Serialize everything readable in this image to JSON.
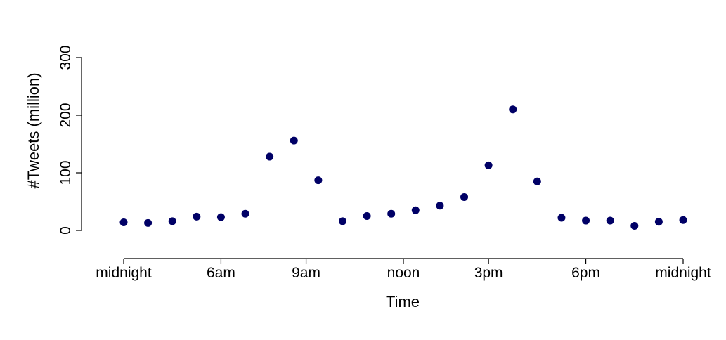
{
  "chart_data": {
    "type": "scatter",
    "title": "",
    "xlabel": "Time",
    "ylabel": "#Tweets (million)",
    "ylim": [
      0,
      300
    ],
    "y_ticks": [
      0,
      100,
      200,
      300
    ],
    "x_ticks": [
      {
        "x": 0,
        "label": "midnight"
      },
      {
        "x": 4,
        "label": "6am"
      },
      {
        "x": 7.5,
        "label": "9am"
      },
      {
        "x": 11.5,
        "label": "noon"
      },
      {
        "x": 15,
        "label": "3pm"
      },
      {
        "x": 19,
        "label": "6pm"
      },
      {
        "x": 23,
        "label": "midnight"
      }
    ],
    "xlim": [
      0,
      23
    ],
    "grid": false,
    "marker_color": "#000066",
    "points": [
      {
        "x": 0,
        "y": 14
      },
      {
        "x": 1,
        "y": 13
      },
      {
        "x": 2,
        "y": 16
      },
      {
        "x": 3,
        "y": 24
      },
      {
        "x": 4,
        "y": 23
      },
      {
        "x": 5,
        "y": 29
      },
      {
        "x": 6,
        "y": 128
      },
      {
        "x": 7,
        "y": 156
      },
      {
        "x": 8,
        "y": 87
      },
      {
        "x": 9,
        "y": 16
      },
      {
        "x": 10,
        "y": 25
      },
      {
        "x": 11,
        "y": 29
      },
      {
        "x": 12,
        "y": 35
      },
      {
        "x": 13,
        "y": 43
      },
      {
        "x": 14,
        "y": 58
      },
      {
        "x": 15,
        "y": 113
      },
      {
        "x": 16,
        "y": 210
      },
      {
        "x": 17,
        "y": 85
      },
      {
        "x": 18,
        "y": 22
      },
      {
        "x": 19,
        "y": 17
      },
      {
        "x": 20,
        "y": 17
      },
      {
        "x": 21,
        "y": 8
      },
      {
        "x": 22,
        "y": 15
      },
      {
        "x": 23,
        "y": 18
      }
    ]
  }
}
